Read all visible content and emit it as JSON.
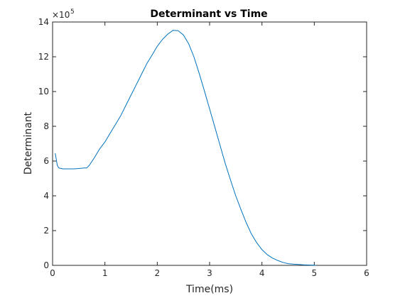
{
  "chart_data": {
    "type": "line",
    "title": "Determinant vs Time",
    "xlabel": "Time(ms)",
    "ylabel": "Determinant",
    "xlim": [
      0,
      6
    ],
    "ylim": [
      0,
      14
    ],
    "y_multiplier_base": "×10",
    "y_multiplier_exponent": "5",
    "x_ticks": [
      "0",
      "1",
      "2",
      "3",
      "4",
      "5",
      "6"
    ],
    "y_ticks": [
      "0",
      "2",
      "4",
      "6",
      "8",
      "10",
      "12",
      "14"
    ],
    "grid": false,
    "line_color": "#0072BD",
    "series": [
      {
        "x": [
          0.05,
          0.07,
          0.09,
          0.12,
          0.2,
          0.3,
          0.4,
          0.5,
          0.6,
          0.65,
          0.7,
          0.8,
          0.9,
          1.0,
          1.1,
          1.2,
          1.3,
          1.4,
          1.5,
          1.6,
          1.7,
          1.8,
          1.9,
          2.0,
          2.1,
          2.2,
          2.3,
          2.4,
          2.5,
          2.6,
          2.7,
          2.8,
          2.9,
          3.0,
          3.1,
          3.2,
          3.3,
          3.4,
          3.5,
          3.6,
          3.7,
          3.8,
          3.9,
          4.0,
          4.1,
          4.2,
          4.3,
          4.4,
          4.5,
          4.6,
          4.7,
          4.8,
          4.9,
          5.0,
          5.03
        ],
        "y": [
          6.45,
          6.1,
          5.75,
          5.6,
          5.55,
          5.55,
          5.55,
          5.57,
          5.6,
          5.6,
          5.75,
          6.2,
          6.7,
          7.1,
          7.6,
          8.1,
          8.6,
          9.2,
          9.8,
          10.4,
          11.0,
          11.6,
          12.1,
          12.6,
          13.0,
          13.3,
          13.52,
          13.5,
          13.25,
          12.75,
          12.0,
          11.05,
          10.05,
          9.0,
          7.95,
          6.9,
          5.85,
          4.9,
          4.0,
          3.2,
          2.45,
          1.8,
          1.3,
          0.9,
          0.62,
          0.42,
          0.28,
          0.17,
          0.1,
          0.07,
          0.05,
          0.03,
          0.02,
          0.01,
          0.0
        ]
      }
    ]
  }
}
